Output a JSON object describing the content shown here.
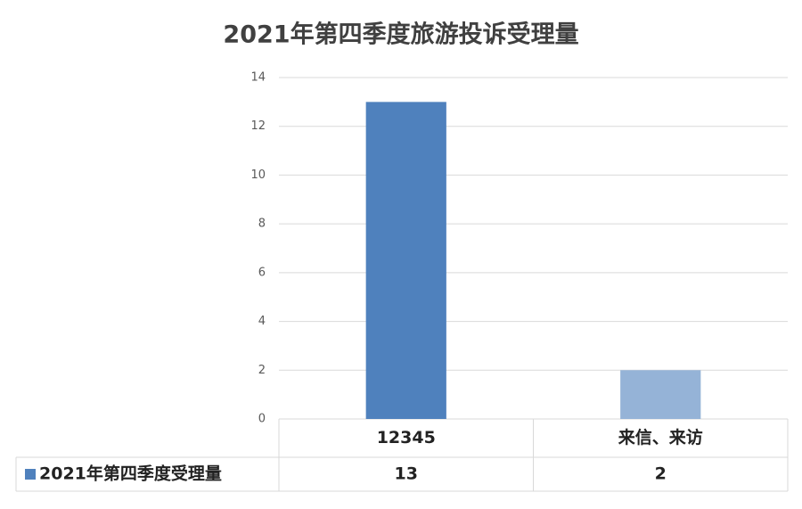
{
  "chart_data": {
    "type": "bar",
    "title": "2021年第四季度旅游投诉受理量",
    "categories": [
      "12345",
      "来信、来访"
    ],
    "series": [
      {
        "name": "2021年第四季度受理量",
        "color": "#4f81bd",
        "point_colors": [
          "#4f81bd",
          "#95b3d7"
        ],
        "values": [
          13,
          2
        ]
      }
    ],
    "ylim": [
      0,
      14
    ],
    "yticks": [
      0,
      2,
      4,
      6,
      8,
      10,
      12,
      14
    ],
    "grid": true,
    "data_table": true
  }
}
